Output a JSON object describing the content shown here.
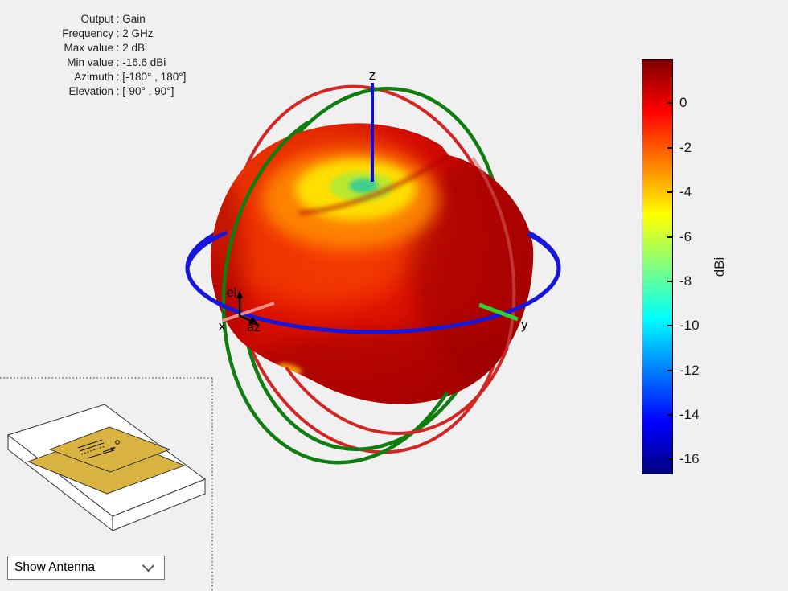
{
  "info_panel": {
    "separator": " : ",
    "rows": [
      {
        "label": "Output",
        "value": "Gain"
      },
      {
        "label": "Frequency",
        "value": "2 GHz"
      },
      {
        "label": "Max value",
        "value": "2 dBi"
      },
      {
        "label": "Min value",
        "value": "-16.6 dBi"
      },
      {
        "label": "Azimuth",
        "value": "[-180° , 180°]"
      },
      {
        "label": "Elevation",
        "value": "[-90° , 90°]"
      }
    ]
  },
  "plot": {
    "axis_labels": {
      "x": "x",
      "y": "y",
      "z": "z",
      "el": "el",
      "az": "az"
    },
    "colors": {
      "azimuth_circle": "#1616dd",
      "elevation_circle_red": "#d42525",
      "elevation_circle_green": "#0f7d0f",
      "z_axis": "#0b0bdd",
      "y_axis_stub": "#2fd32f",
      "x_axis_stub": "#f59a9a"
    }
  },
  "colorbar": {
    "unit_label": "dBi",
    "max_value": 2,
    "min_value": -16.6,
    "ticks": [
      0,
      -2,
      -4,
      -6,
      -8,
      -10,
      -12,
      -14,
      -16
    ],
    "colormap": "jet",
    "gradient": [
      "#800000",
      "#ff0000",
      "#ffff00",
      "#00ffff",
      "#0000ff",
      "#000080"
    ]
  },
  "inset": {
    "description": "antenna-geometry-preview",
    "patch_color": "#d9b342"
  },
  "dropdown": {
    "value": "Show Antenna"
  },
  "chart_data": {
    "type": "3d-polar-surface",
    "output": "Gain",
    "frequency": "2 GHz",
    "max_value_dBi": 2,
    "min_value_dBi": -16.6,
    "azimuth_range_deg": [
      -180,
      180
    ],
    "elevation_range_deg": [
      -90,
      90
    ],
    "colorbar": {
      "label": "dBi",
      "ticks": [
        0,
        -2,
        -4,
        -6,
        -8,
        -10,
        -12,
        -14,
        -16
      ],
      "top_value": 2,
      "bottom_value": -16.6,
      "colormap": "jet"
    },
    "axes": {
      "x": "x",
      "y": "y",
      "z": "z",
      "azimuth_marker": "az",
      "elevation_marker": "el"
    },
    "legend_position": "right",
    "notes": "donut-shaped gain surface, minimum (green/yellow dimple) at zenith around +z axis"
  }
}
